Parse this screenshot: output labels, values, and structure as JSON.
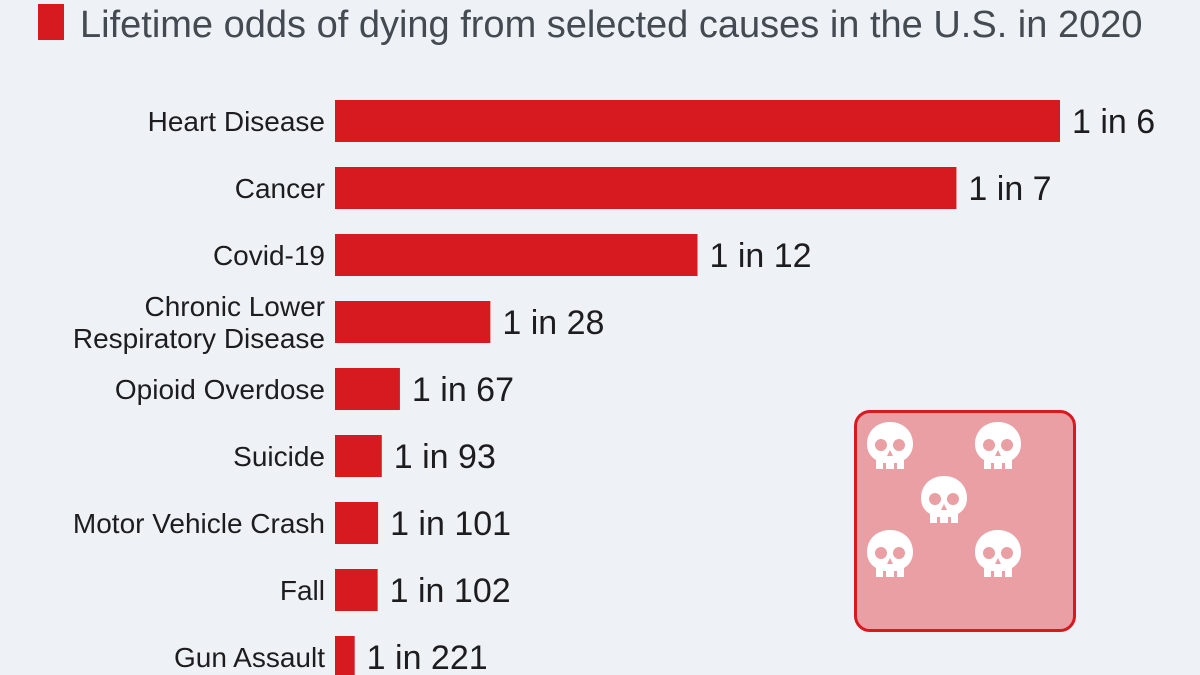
{
  "chart_data": {
    "type": "bar",
    "orientation": "horizontal",
    "title": "Lifetime odds of dying from selected causes in the U.S. in 2020",
    "categories": [
      [
        "Heart Disease"
      ],
      [
        "Cancer"
      ],
      [
        "Covid-19"
      ],
      [
        "Chronic Lower",
        "Respiratory Disease"
      ],
      [
        "Opioid Overdose"
      ],
      [
        "Suicide"
      ],
      [
        "Motor Vehicle Crash"
      ],
      [
        "Fall"
      ],
      [
        "Gun Assault"
      ]
    ],
    "odds_denominator": [
      6,
      7,
      12,
      28,
      67,
      93,
      101,
      102,
      221
    ],
    "value_labels": [
      "1 in 6",
      "1 in 7",
      "1 in 12",
      "1 in 28",
      "1 in 67",
      "1 in 93",
      "1 in 101",
      "1 in 102",
      "1 in 221"
    ],
    "bar_color": "#d71920",
    "grid": false,
    "legend": "none"
  },
  "decoration": {
    "icon": "dice-with-skulls-icon",
    "background_color": "#e99fa4",
    "border_color": "#d71920"
  }
}
